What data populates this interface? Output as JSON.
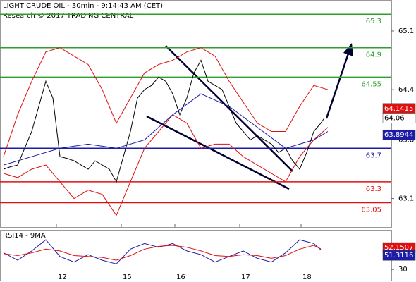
{
  "chart_data": [
    {
      "type": "line",
      "title": "LIGHT CRUDE OIL - 30min - 9:14:43 AM (CET)",
      "subtitle": "Research © 2017 TRADING CENTRAL",
      "xlim": [
        0,
        111
      ],
      "ylim": [
        62.76,
        65.47
      ],
      "yticks": [
        65.1,
        64.4,
        63.8,
        63.1
      ],
      "xticks": [
        {
          "value": 16,
          "label": "12"
        },
        {
          "value": 34.4,
          "label": "15"
        },
        {
          "value": 49.6,
          "label": "16"
        },
        {
          "value": 68,
          "label": "17"
        },
        {
          "value": 85.4,
          "label": "18"
        }
      ],
      "levels": [
        {
          "value": 65.3,
          "color": "#2e9e2e"
        },
        {
          "value": 64.9,
          "color": "#2e9e2e"
        },
        {
          "value": 64.55,
          "color": "#2e9e2e"
        },
        {
          "value": 63.7,
          "color": "#1c1ca8"
        },
        {
          "value": 63.3,
          "color": "#e01010"
        },
        {
          "value": 63.05,
          "color": "#e01010"
        }
      ],
      "price_tags": [
        {
          "value": 64.1415,
          "color": "#e01010"
        },
        {
          "value": 64.06,
          "color": "#ffffff"
        },
        {
          "value": 63.8944,
          "color": "#1c1ca8"
        }
      ],
      "series": [
        {
          "color": "#000000",
          "x": [
            1,
            3,
            5,
            7,
            9,
            11,
            13,
            15,
            17,
            19,
            21,
            23,
            25,
            27,
            29,
            31,
            33,
            35,
            37,
            39,
            41,
            43,
            45,
            47,
            49,
            51,
            53,
            55,
            57,
            59,
            61,
            63,
            65,
            67,
            69,
            71,
            73,
            75,
            77,
            79,
            81,
            83,
            85,
            87,
            89,
            91,
            92
          ],
          "values": [
            63.45,
            63.48,
            63.5,
            63.7,
            63.9,
            64.2,
            64.5,
            64.3,
            63.6,
            63.58,
            63.55,
            63.5,
            63.45,
            63.55,
            63.5,
            63.45,
            63.3,
            63.6,
            63.9,
            64.3,
            64.4,
            64.45,
            64.55,
            64.5,
            64.35,
            64.1,
            64.3,
            64.6,
            64.75,
            64.5,
            64.45,
            64.4,
            64.2,
            64.0,
            63.9,
            63.8,
            63.85,
            63.8,
            63.75,
            63.65,
            63.7,
            63.55,
            63.45,
            63.65,
            63.9,
            64.0,
            64.06
          ]
        },
        {
          "color": "#e01010",
          "x": [
            1,
            5,
            9,
            13,
            17,
            21,
            25,
            29,
            33,
            37,
            41,
            45,
            49,
            53,
            57,
            61,
            65,
            69,
            73,
            77,
            81,
            85,
            89,
            93
          ],
          "values": [
            63.6,
            64.1,
            64.5,
            64.85,
            64.9,
            64.8,
            64.7,
            64.4,
            64.0,
            64.3,
            64.6,
            64.7,
            64.75,
            64.85,
            64.9,
            64.8,
            64.5,
            64.25,
            64.0,
            63.9,
            63.9,
            64.2,
            64.45,
            64.4
          ]
        },
        {
          "color": "#e01010",
          "x": [
            1,
            5,
            9,
            13,
            17,
            21,
            25,
            29,
            33,
            37,
            41,
            45,
            49,
            53,
            57,
            61,
            65,
            69,
            73,
            77,
            81,
            85,
            89,
            93
          ],
          "values": [
            63.4,
            63.35,
            63.45,
            63.5,
            63.3,
            63.1,
            63.2,
            63.15,
            62.9,
            63.3,
            63.7,
            63.9,
            64.1,
            64.0,
            63.7,
            63.75,
            63.75,
            63.6,
            63.5,
            63.4,
            63.3,
            63.6,
            63.8,
            63.95
          ]
        },
        {
          "color": "#1c1ca8",
          "x": [
            1,
            9,
            17,
            25,
            33,
            41,
            49,
            57,
            65,
            73,
            81,
            89,
            93
          ],
          "values": [
            63.5,
            63.6,
            63.7,
            63.75,
            63.7,
            63.8,
            64.1,
            64.35,
            64.2,
            63.95,
            63.7,
            63.8,
            63.9
          ]
        }
      ]
    },
    {
      "type": "line",
      "title": "RSI14 - 9MA",
      "xlim": [
        0,
        111
      ],
      "ylim": [
        18,
        72
      ],
      "yticks": [
        30
      ],
      "price_tags": [
        {
          "value": 52.1507,
          "color": "#e01010"
        },
        {
          "value": 51.3116,
          "color": "#1c1ca8"
        }
      ],
      "series": [
        {
          "color": "#1c1ca8",
          "x": [
            1,
            5,
            9,
            13,
            17,
            21,
            25,
            29,
            33,
            37,
            41,
            45,
            49,
            53,
            57,
            61,
            65,
            69,
            73,
            77,
            81,
            85,
            89,
            91
          ],
          "values": [
            48,
            40,
            50,
            62,
            44,
            38,
            46,
            40,
            36,
            52,
            58,
            54,
            58,
            50,
            46,
            38,
            44,
            50,
            42,
            38,
            48,
            62,
            58,
            51.3
          ]
        },
        {
          "color": "#e01010",
          "x": [
            1,
            5,
            9,
            13,
            17,
            21,
            25,
            29,
            33,
            37,
            41,
            45,
            49,
            53,
            57,
            61,
            65,
            69,
            73,
            77,
            81,
            85,
            89,
            91
          ],
          "values": [
            47,
            45,
            48,
            52,
            50,
            45,
            44,
            43,
            40,
            45,
            52,
            55,
            56,
            54,
            50,
            45,
            44,
            46,
            45,
            42,
            45,
            52,
            56,
            52.2
          ]
        }
      ]
    }
  ]
}
